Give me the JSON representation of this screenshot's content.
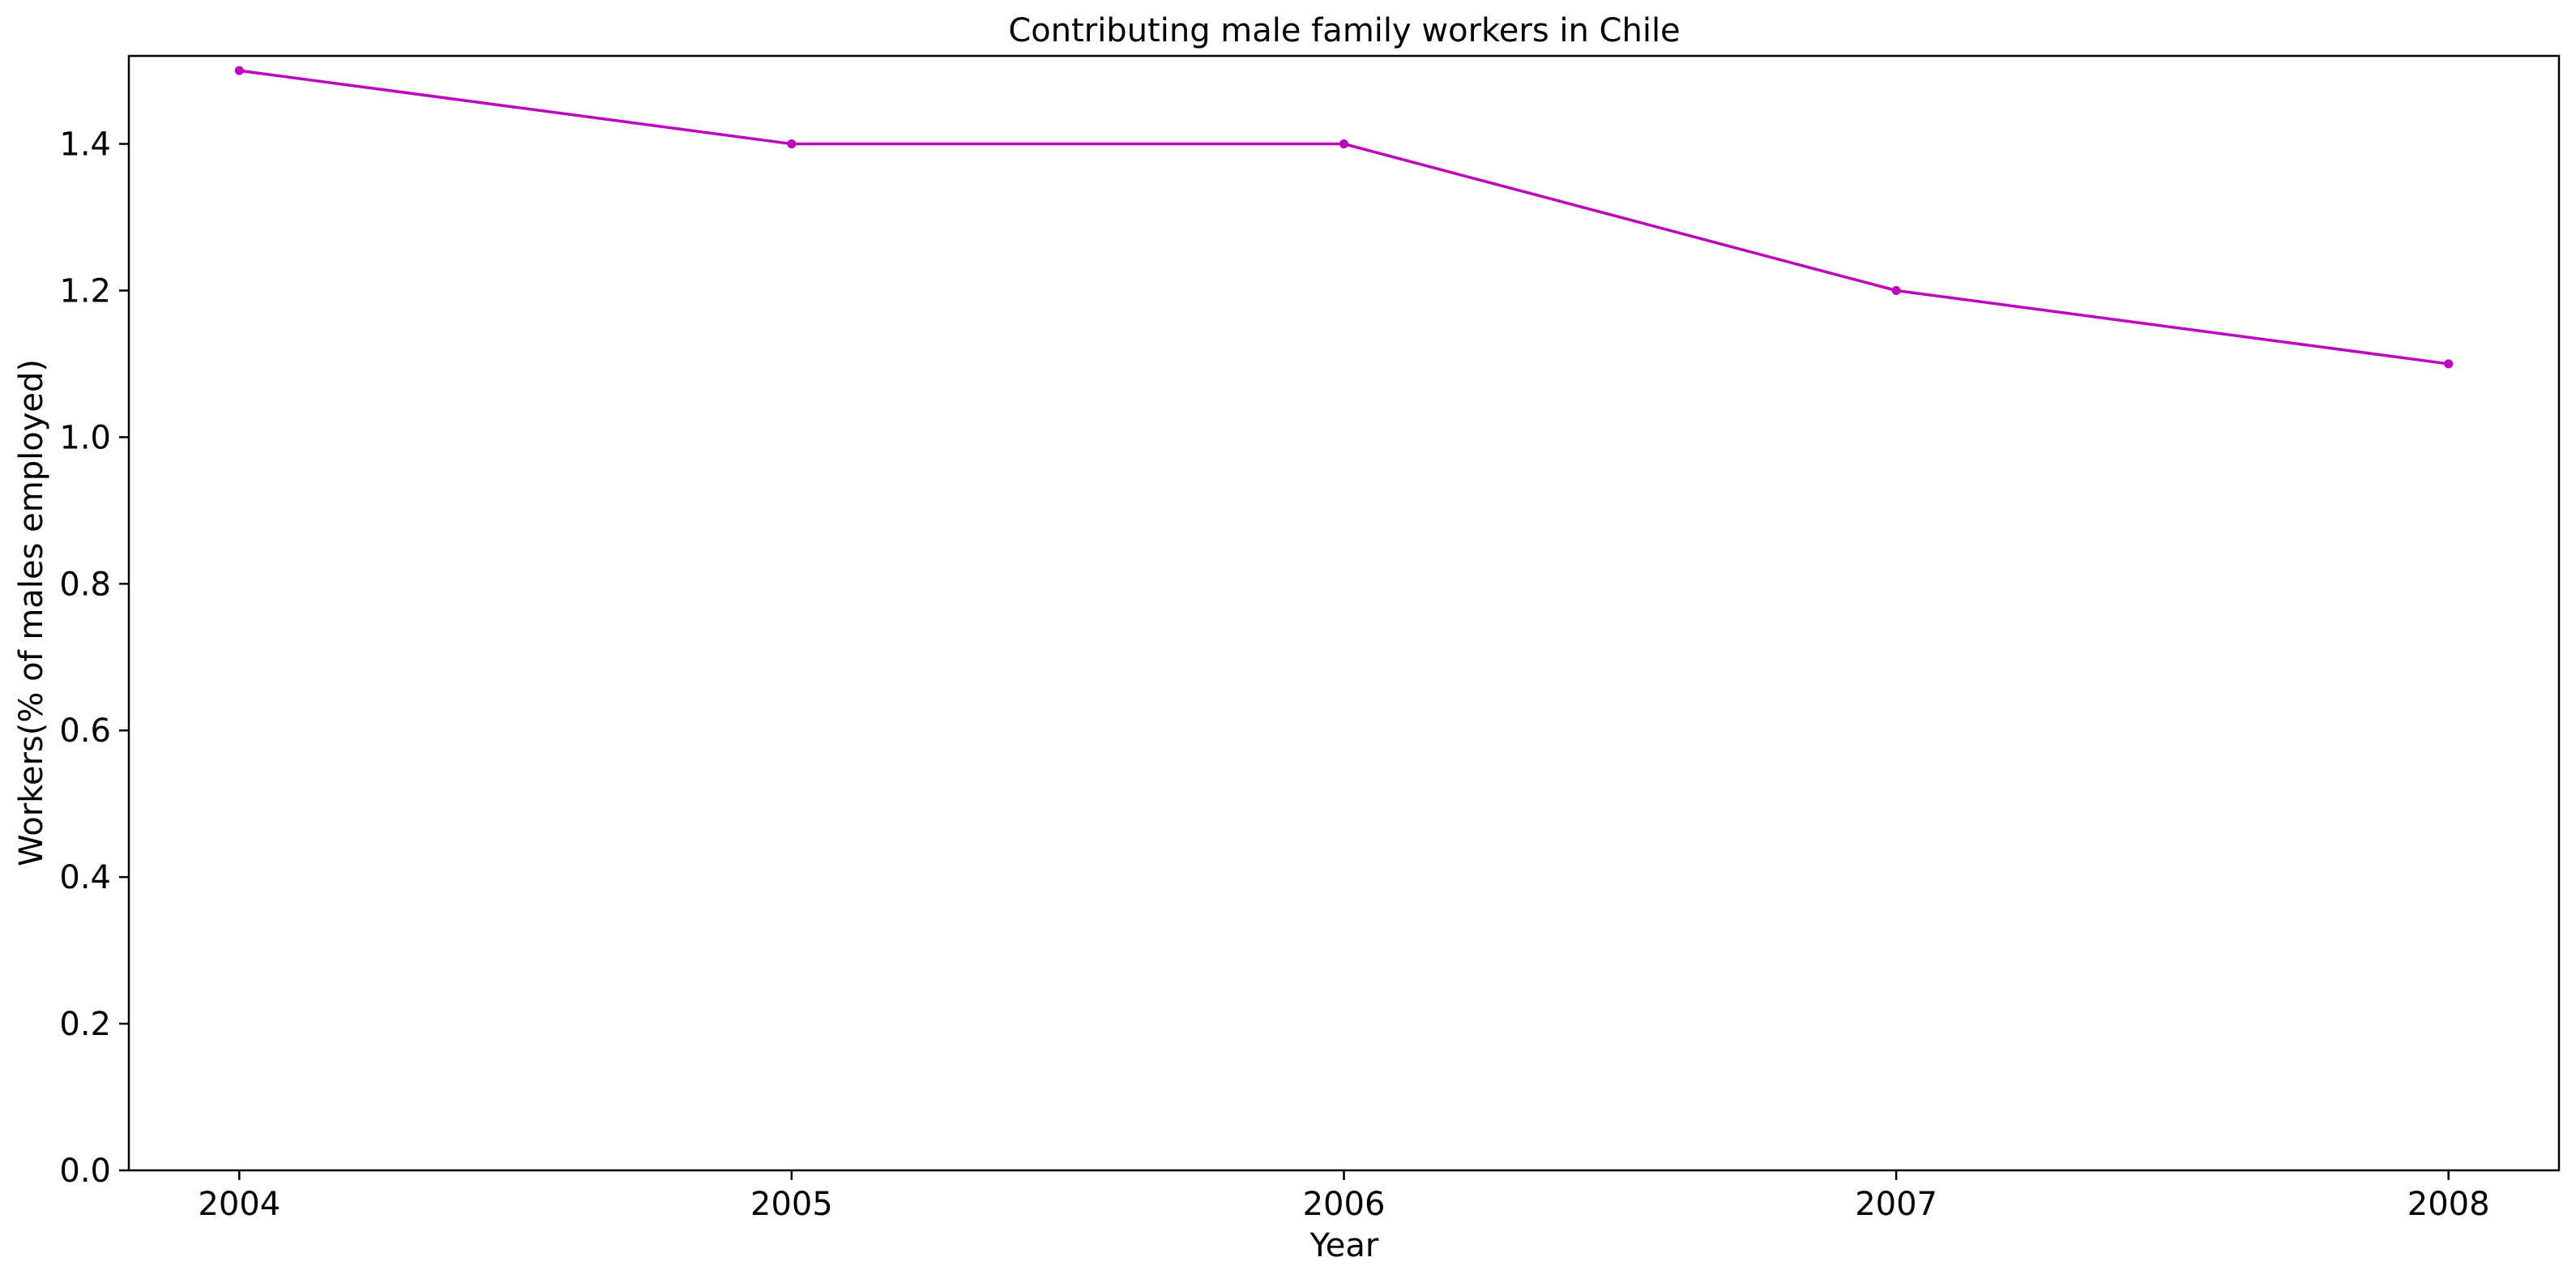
{
  "chart_data": {
    "type": "line",
    "title": "Contributing male family workers in Chile",
    "xlabel": "Year",
    "ylabel": "Workers(% of males employed)",
    "x": [
      "2004",
      "2005",
      "2006",
      "2007",
      "2008"
    ],
    "series": [
      {
        "values": [
          1.5,
          1.4,
          1.4,
          1.2,
          1.1
        ],
        "color": "#bf00bf",
        "marker": "circle"
      }
    ],
    "xlim": [
      2003.8,
      2008.2
    ],
    "ylim": [
      0,
      1.52
    ],
    "yticks": [
      "0.0",
      "0.2",
      "0.4",
      "0.6",
      "0.8",
      "1.0",
      "1.2",
      "1.4"
    ],
    "grid": false,
    "legend": "none"
  }
}
